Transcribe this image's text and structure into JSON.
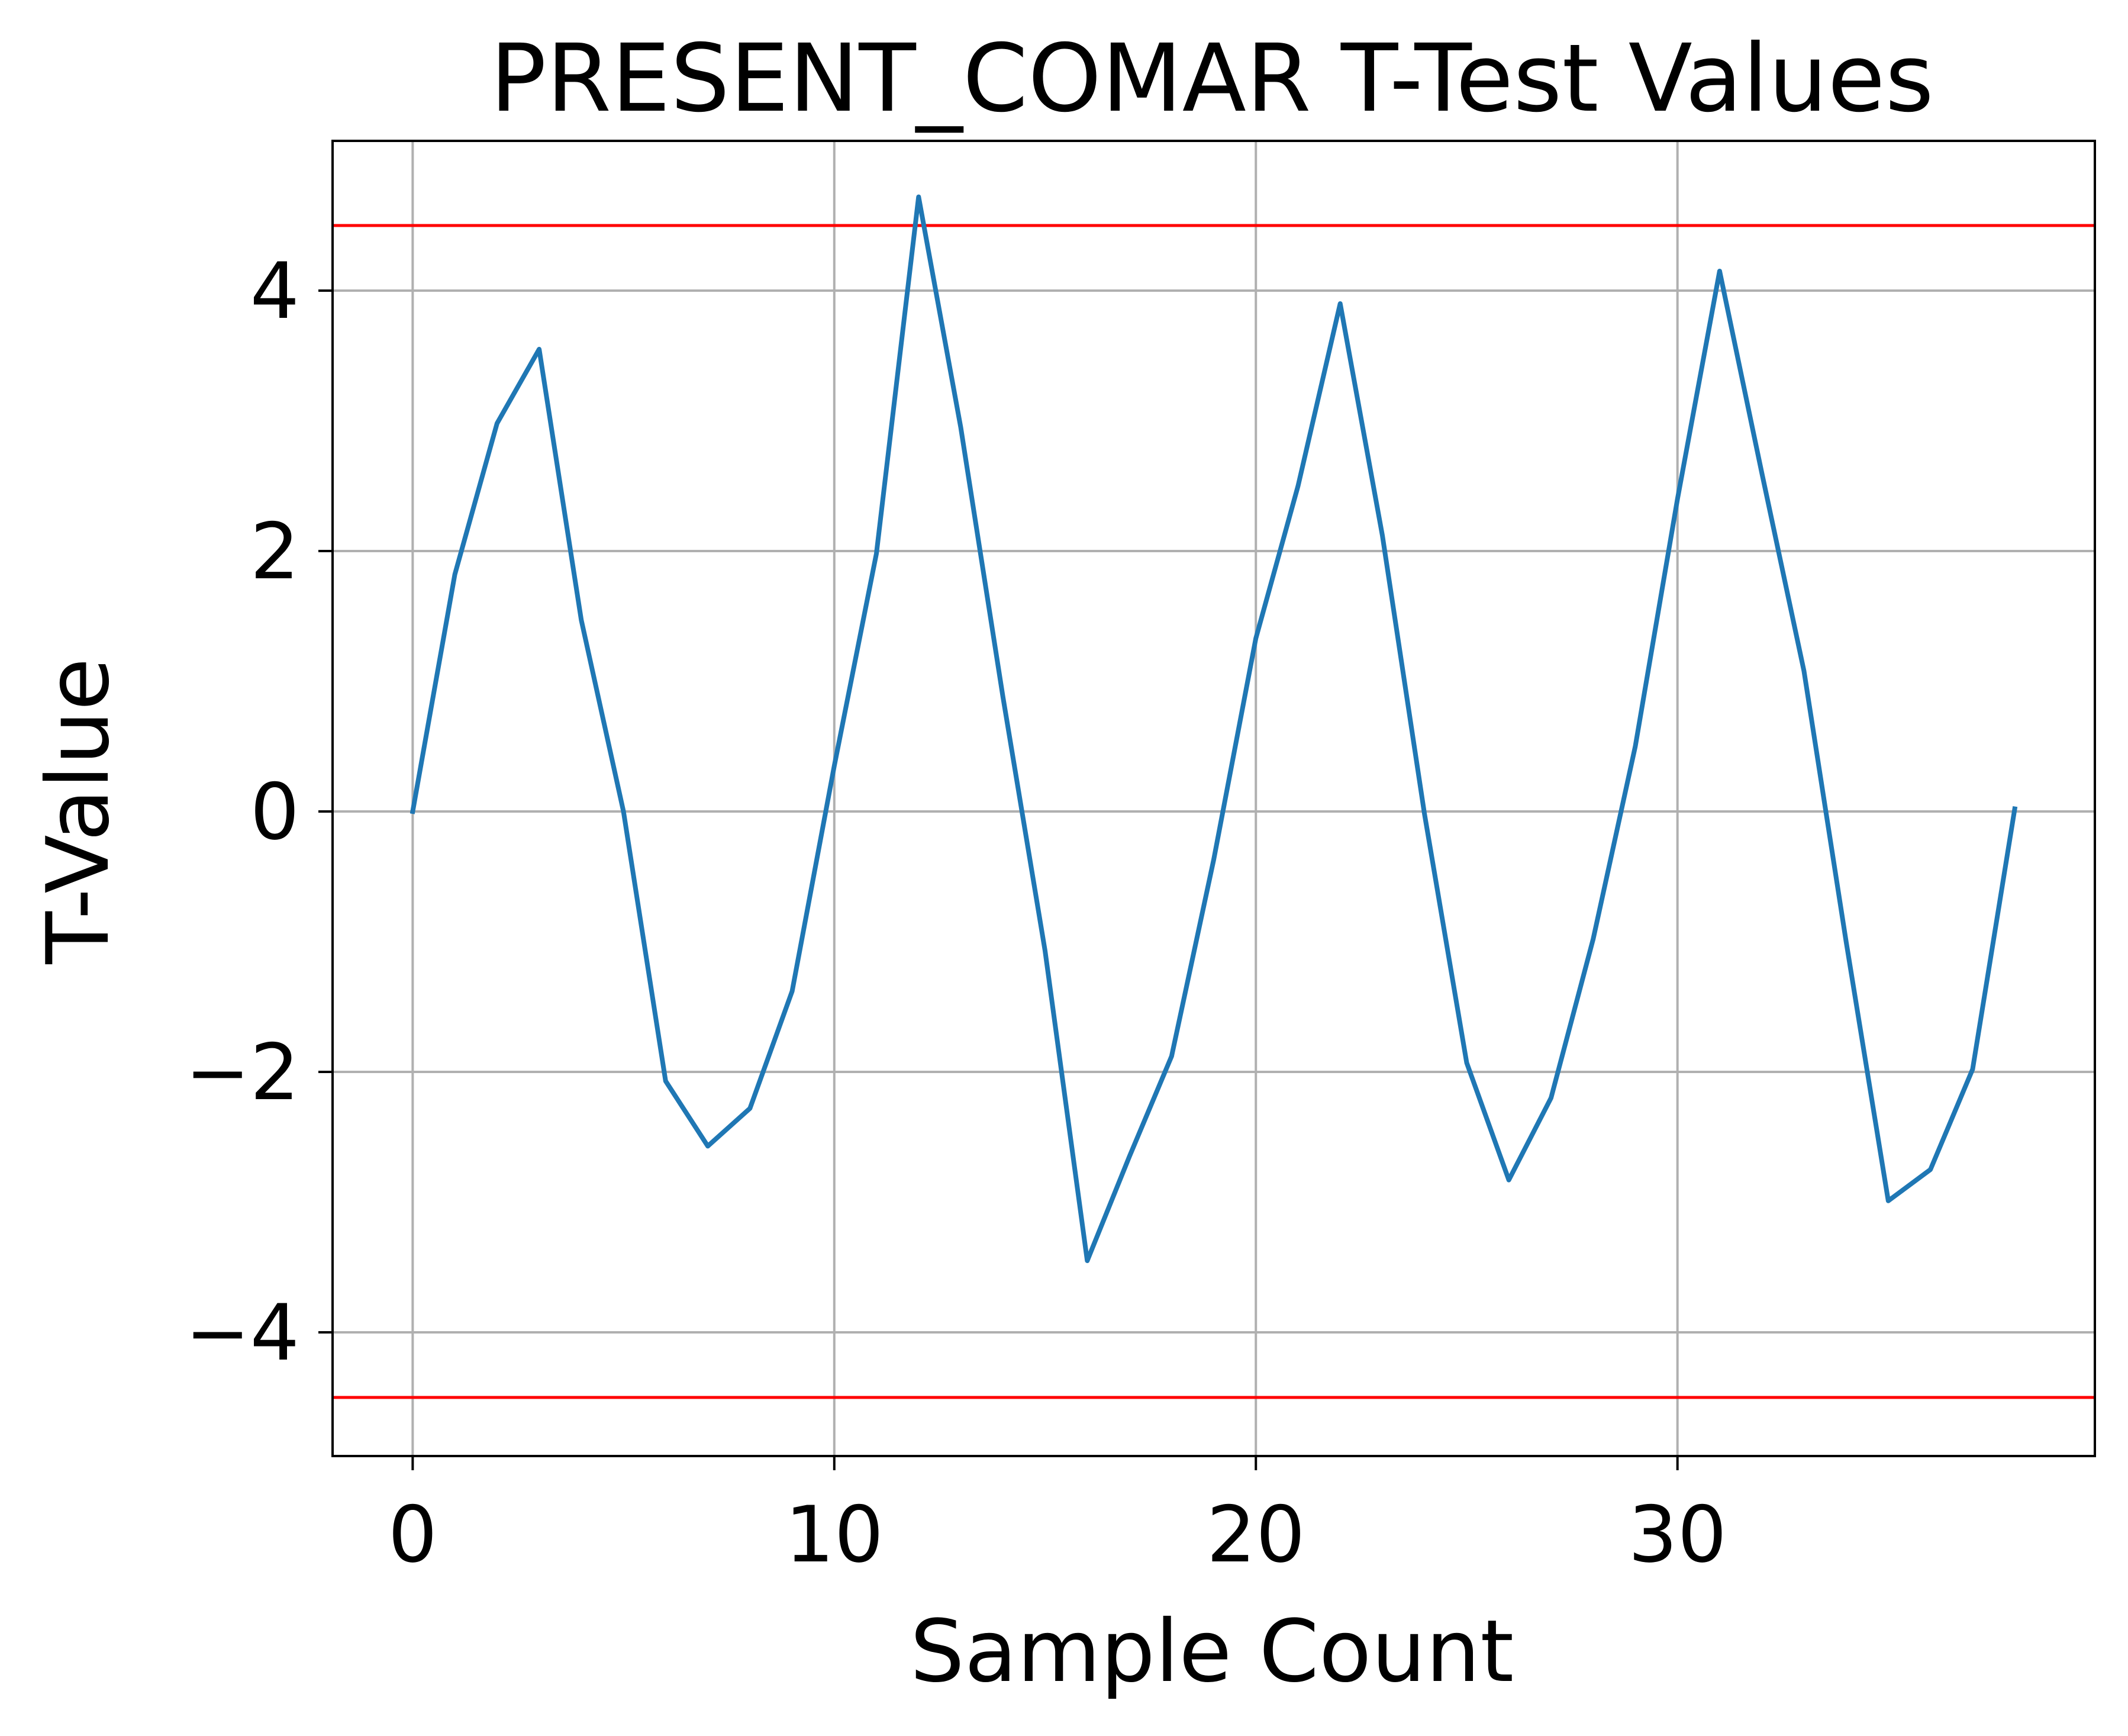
{
  "chart_data": {
    "type": "line",
    "title": "PRESENT_COMAR T-Test Values",
    "xlabel": "Sample Count",
    "ylabel": "T-Value",
    "xlim": [
      -1.9,
      39.9
    ],
    "ylim": [
      -4.95,
      5.15
    ],
    "xticks": [
      0,
      10,
      20,
      30
    ],
    "yticks": [
      -4,
      -2,
      0,
      2,
      4
    ],
    "xtick_labels": [
      "0",
      "10",
      "20",
      "30"
    ],
    "ytick_labels": [
      "−4",
      "−2",
      "0",
      "2",
      "4"
    ],
    "grid": true,
    "series": [
      {
        "color": "#1f77b4",
        "x": [
          0,
          1,
          2,
          3,
          4,
          5,
          6,
          7,
          8,
          9,
          10,
          11,
          12,
          13,
          14,
          15,
          16,
          17,
          18,
          19,
          20,
          21,
          22,
          23,
          24,
          25,
          26,
          27,
          28,
          29,
          30,
          31,
          32,
          33,
          34,
          35,
          36,
          37,
          38
        ],
        "values": [
          0,
          1.82,
          2.98,
          3.55,
          1.47,
          0,
          -2.07,
          -2.57,
          -2.28,
          -1.38,
          0.35,
          1.98,
          4.72,
          2.95,
          0.88,
          -1.07,
          -3.45,
          -2.65,
          -1.88,
          -0.37,
          1.33,
          2.5,
          3.9,
          2.12,
          -0.02,
          -1.93,
          -2.83,
          -2.2,
          -0.98,
          0.5,
          2.4,
          4.15,
          2.6,
          1.08,
          -1.0,
          -2.99,
          -2.75,
          -1.98,
          0.02
        ]
      }
    ],
    "threshold_lines": [
      {
        "value": 4.5,
        "color": "#ff0000"
      },
      {
        "value": -4.5,
        "color": "#ff0000"
      }
    ],
    "colors": {
      "grid": "#b0b0b0",
      "axes": "#000000",
      "background": "#ffffff"
    }
  }
}
